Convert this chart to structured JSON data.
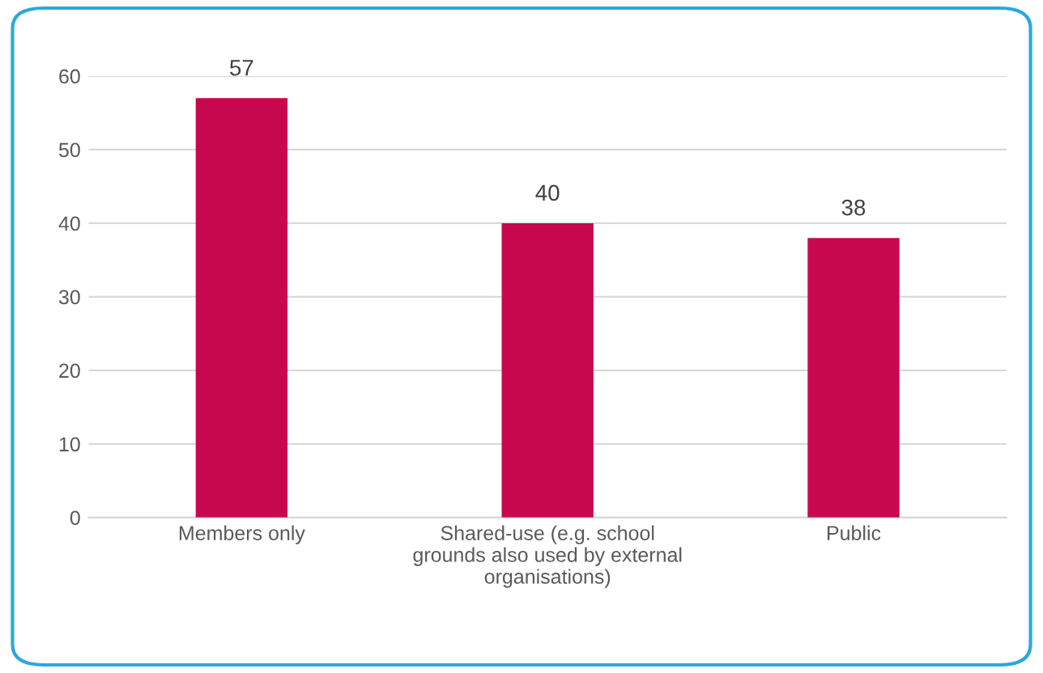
{
  "chart_data": {
    "type": "bar",
    "categories": [
      "Members only",
      "Shared-use (e.g. school\ngrounds also used by external\norganisations)",
      "Public"
    ],
    "values": [
      57,
      40,
      38
    ],
    "color": "#c8084e",
    "data_labels": true,
    "ylim": [
      0,
      60
    ],
    "yticks": [
      0,
      10,
      20,
      30,
      40,
      50,
      60
    ],
    "grid": "y",
    "legend": false
  }
}
